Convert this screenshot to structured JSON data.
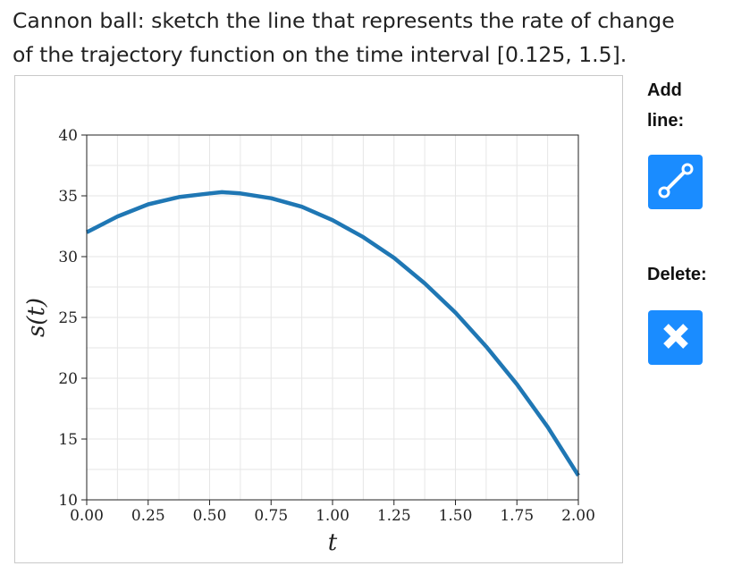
{
  "prompt": {
    "line1": "Cannon ball: sketch the line that represents the rate of change",
    "line2": "of the trajectory function on the time interval [0.125, 1.5]."
  },
  "tools": {
    "add_label": "Add line:",
    "delete_label": "Delete:",
    "add_icon": "line-segment-icon",
    "delete_icon": "close-x-icon",
    "button_color": "#1a8cff"
  },
  "chart_data": {
    "type": "line",
    "xlabel": "t",
    "ylabel": "s(t)",
    "xlim": [
      0,
      2
    ],
    "ylim": [
      10,
      40
    ],
    "x_ticks": [
      "0.00",
      "0.25",
      "0.50",
      "0.75",
      "1.00",
      "1.25",
      "1.50",
      "1.75",
      "2.00"
    ],
    "y_ticks": [
      "10",
      "15",
      "20",
      "25",
      "30",
      "35",
      "40"
    ],
    "minor_grid_step_x": 0.125,
    "minor_grid_step_y": 2.5,
    "grid": true,
    "series_color": "#1f77b4",
    "series": [
      {
        "x": [
          0,
          0.125,
          0.25,
          0.375,
          0.5,
          0.55,
          0.625,
          0.75,
          0.875,
          1.0,
          1.125,
          1.25,
          1.375,
          1.5,
          1.625,
          1.75,
          1.875,
          2.0
        ],
        "y": [
          32,
          33.3,
          34.3,
          34.9,
          35.2,
          35.3,
          35.2,
          34.8,
          34.1,
          33.0,
          31.6,
          29.9,
          27.8,
          25.4,
          22.6,
          19.5,
          16.0,
          12.0
        ]
      }
    ]
  }
}
